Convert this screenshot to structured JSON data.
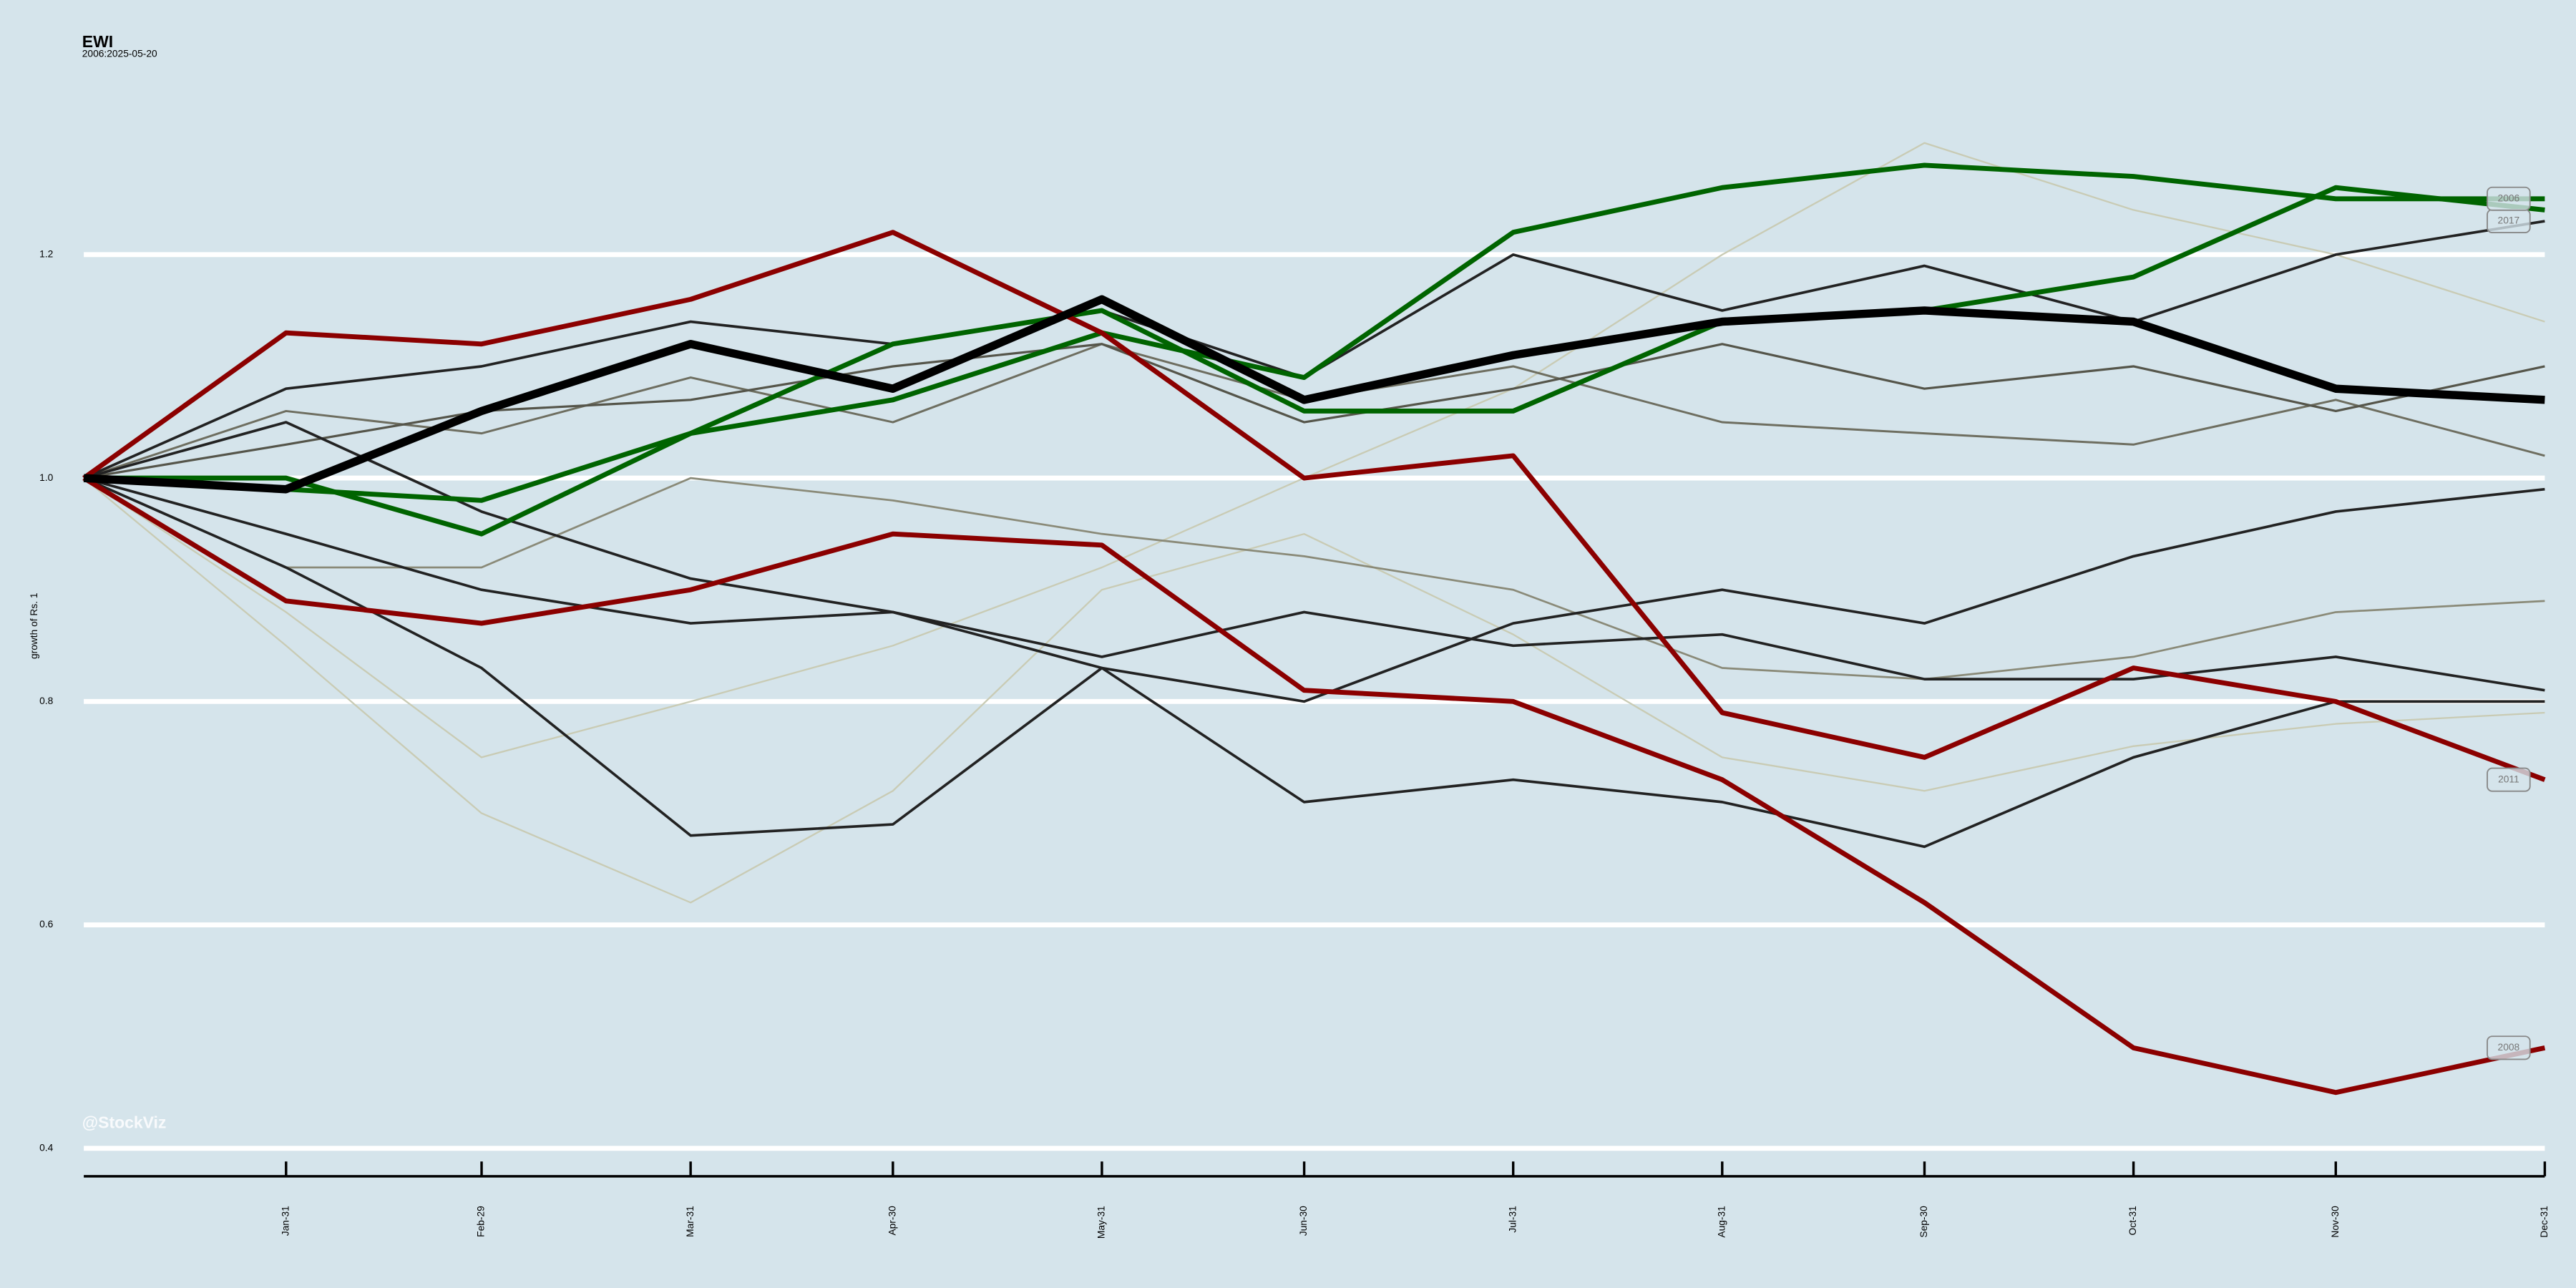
{
  "chart_data": {
    "type": "line",
    "title": "EWI",
    "subtitle": "2006:2025-05-20",
    "ylabel": "growth of Rs. 1",
    "watermark": "@StockViz",
    "grid": true,
    "x": [
      1,
      31,
      60,
      91,
      121,
      152,
      182,
      213,
      244,
      274,
      305,
      335,
      366
    ],
    "xlim": [
      1,
      366
    ],
    "xticks": [
      {
        "value": 31,
        "label": "Jan-31"
      },
      {
        "value": 60,
        "label": "Feb-29"
      },
      {
        "value": 91,
        "label": "Mar-31"
      },
      {
        "value": 121,
        "label": "Apr-30"
      },
      {
        "value": 152,
        "label": "May-31"
      },
      {
        "value": 182,
        "label": "Jun-30"
      },
      {
        "value": 213,
        "label": "Jul-31"
      },
      {
        "value": 244,
        "label": "Aug-31"
      },
      {
        "value": 274,
        "label": "Sep-30"
      },
      {
        "value": 305,
        "label": "Oct-31"
      },
      {
        "value": 335,
        "label": "Nov-30"
      },
      {
        "value": 366,
        "label": "Dec-31"
      }
    ],
    "ylim": [
      0.375,
      1.37
    ],
    "yticks": [
      0.4,
      0.6,
      0.8,
      {
        "value": 1,
        "label": "1.0"
      },
      1.2
    ],
    "series": [
      {
        "color": "#c9cbb4",
        "linewidth": 1,
        "values": [
          1.0,
          0.88,
          0.75,
          0.8,
          0.85,
          0.92,
          1.0,
          1.08,
          1.2,
          1.3,
          1.24,
          1.2,
          1.14
        ]
      },
      {
        "color": "#c9cbb4",
        "linewidth": 1,
        "values": [
          1.0,
          0.85,
          0.7,
          0.62,
          0.72,
          0.9,
          0.95,
          0.86,
          0.75,
          0.72,
          0.76,
          0.78,
          0.79
        ]
      },
      {
        "color": "#8a8a78",
        "linewidth": 1.2,
        "values": [
          1.0,
          0.92,
          0.92,
          1.0,
          0.98,
          0.95,
          0.93,
          0.9,
          0.83,
          0.82,
          0.84,
          0.88,
          0.89
        ]
      },
      {
        "color": "#6e6e60",
        "linewidth": 1.3,
        "values": [
          1.0,
          1.06,
          1.04,
          1.09,
          1.05,
          1.12,
          1.07,
          1.1,
          1.05,
          1.04,
          1.03,
          1.07,
          1.02
        ]
      },
      {
        "color": "#55554a",
        "linewidth": 1.4,
        "values": [
          1.0,
          1.03,
          1.06,
          1.07,
          1.1,
          1.12,
          1.05,
          1.08,
          1.12,
          1.08,
          1.1,
          1.06,
          1.1
        ]
      },
      {
        "color": "#222222",
        "linewidth": 1.6,
        "values": [
          1.0,
          0.95,
          0.9,
          0.87,
          0.88,
          0.84,
          0.88,
          0.85,
          0.86,
          0.82,
          0.82,
          0.84,
          0.81
        ]
      },
      {
        "color": "#222222",
        "linewidth": 1.6,
        "values": [
          1.0,
          0.92,
          0.83,
          0.68,
          0.69,
          0.83,
          0.71,
          0.73,
          0.71,
          0.67,
          0.75,
          0.8,
          0.8
        ]
      },
      {
        "color": "#222222",
        "linewidth": 1.6,
        "values": [
          1.0,
          1.05,
          0.97,
          0.91,
          0.88,
          0.83,
          0.8,
          0.87,
          0.9,
          0.87,
          0.93,
          0.97,
          0.99
        ]
      },
      {
        "name": "2017",
        "color": "#222222",
        "linewidth": 1.6,
        "values": [
          1.0,
          1.08,
          1.1,
          1.14,
          1.12,
          1.15,
          1.09,
          1.2,
          1.15,
          1.19,
          1.14,
          1.2,
          1.23
        ]
      },
      {
        "color": "#006400",
        "linewidth": 3,
        "values": [
          1.0,
          1.0,
          0.95,
          1.04,
          1.12,
          1.15,
          1.06,
          1.06,
          1.14,
          1.15,
          1.18,
          1.26,
          1.24
        ]
      },
      {
        "name": "2006",
        "color": "#006400",
        "linewidth": 3,
        "values": [
          1.0,
          0.99,
          0.98,
          1.04,
          1.07,
          1.13,
          1.09,
          1.22,
          1.26,
          1.28,
          1.27,
          1.25,
          1.25
        ]
      },
      {
        "name": "2011",
        "color": "#8b0000",
        "linewidth": 3,
        "values": [
          1.0,
          1.13,
          1.12,
          1.16,
          1.22,
          1.13,
          1.0,
          1.02,
          0.79,
          0.75,
          0.83,
          0.8,
          0.73
        ]
      },
      {
        "name": "2008",
        "color": "#8b0000",
        "linewidth": 3,
        "values": [
          1.0,
          0.89,
          0.87,
          0.9,
          0.95,
          0.94,
          0.81,
          0.8,
          0.73,
          0.62,
          0.49,
          0.45,
          0.49
        ]
      },
      {
        "color": "#000000",
        "linewidth": 5,
        "values": [
          1.0,
          0.99,
          1.06,
          1.12,
          1.08,
          1.16,
          1.07,
          1.11,
          1.14,
          1.15,
          1.14,
          1.08,
          1.07
        ]
      }
    ]
  }
}
